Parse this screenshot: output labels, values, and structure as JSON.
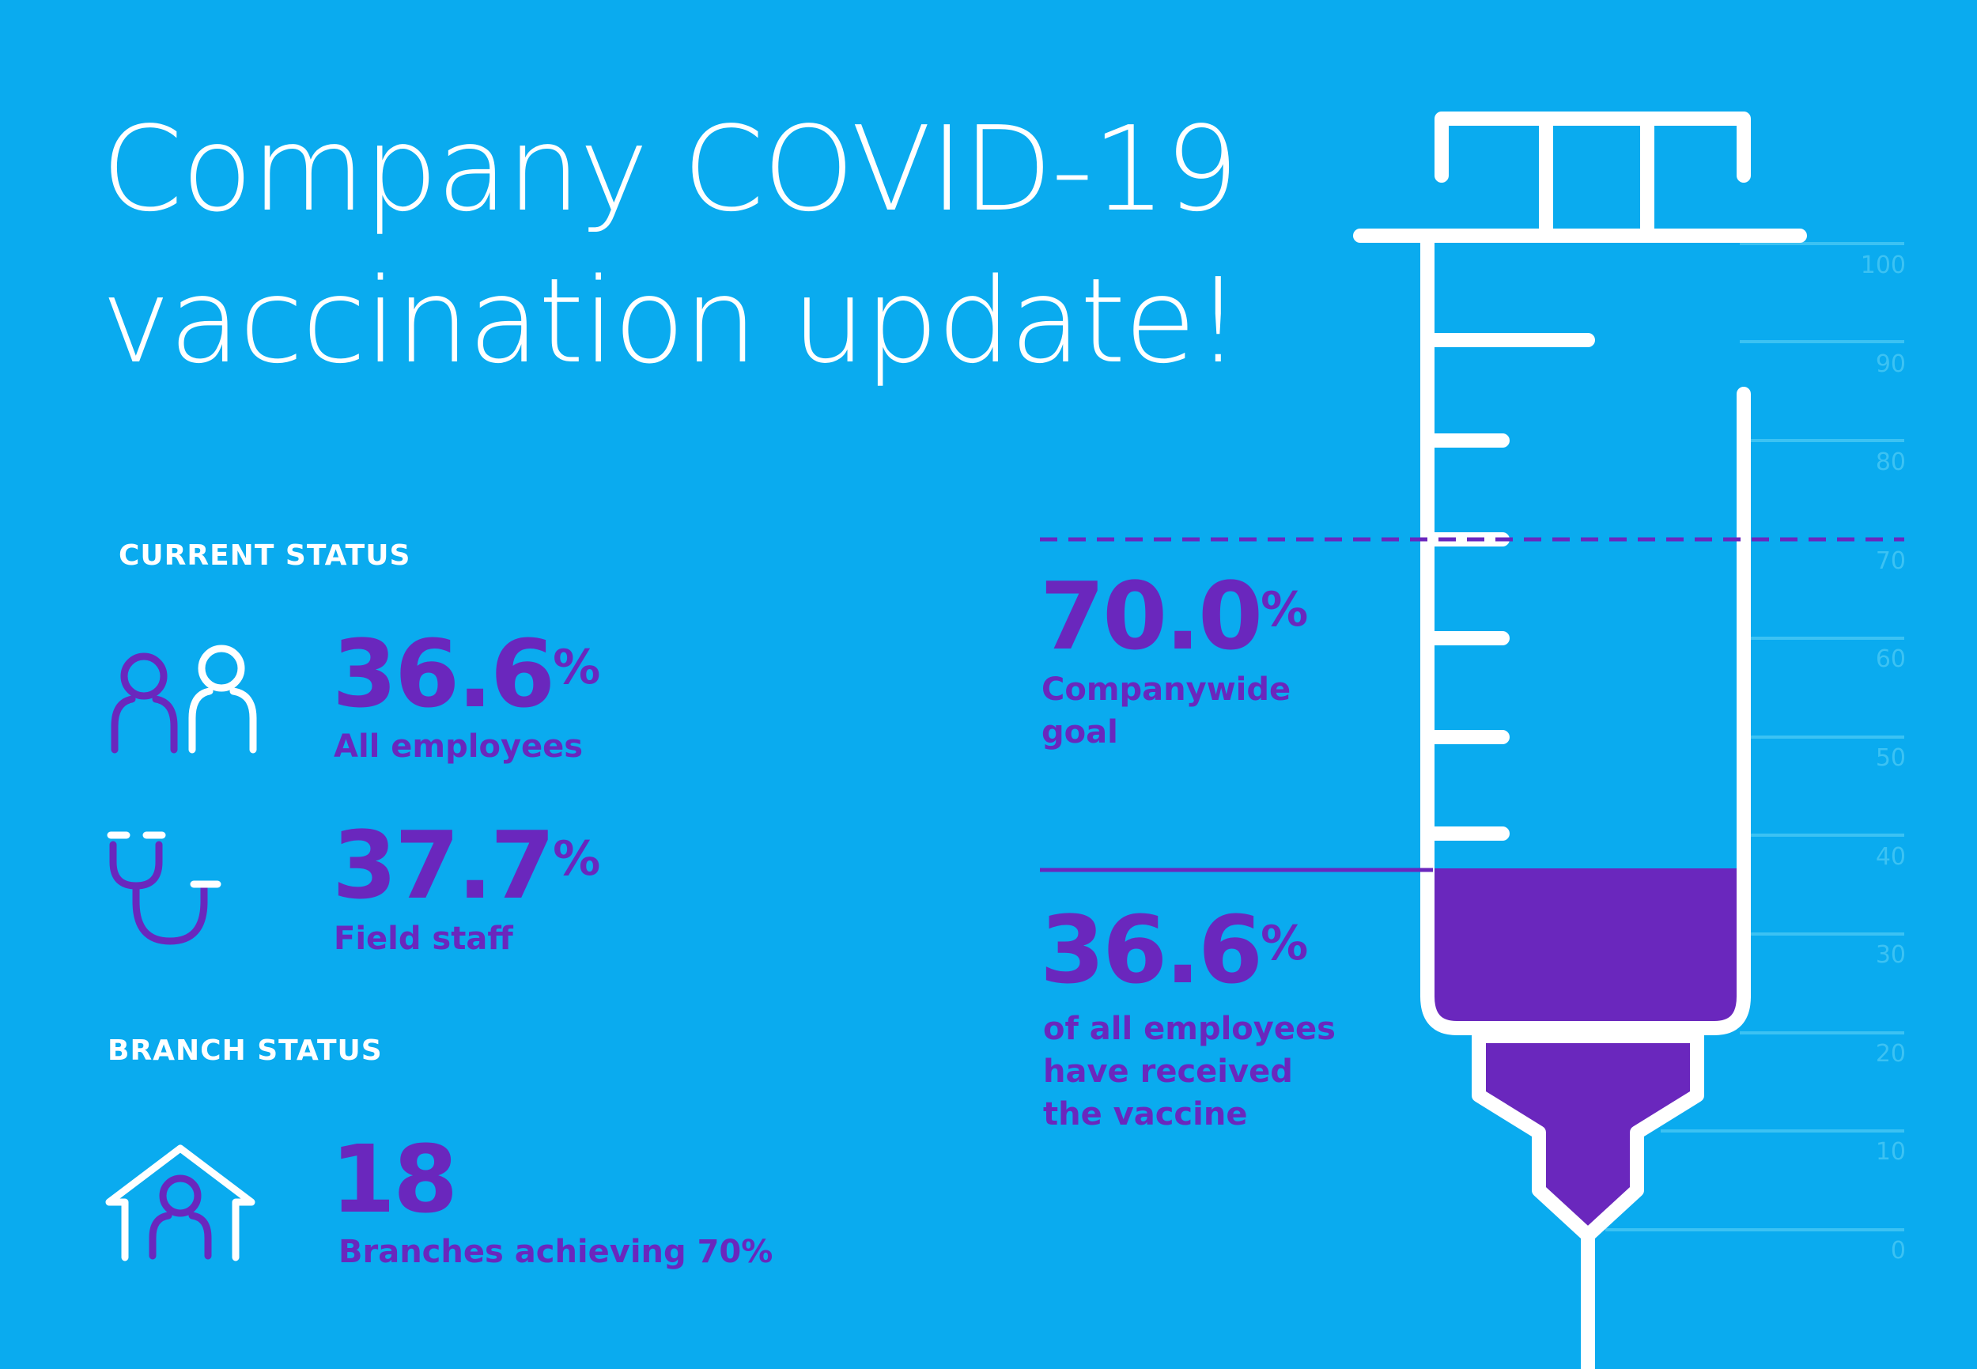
{
  "title": {
    "line1": "Company COVID-19",
    "line2": "vaccination update!"
  },
  "current_status": {
    "heading": "CURRENT STATUS",
    "all_employees": {
      "value": "36.6",
      "unit": "%",
      "label": "All employees",
      "icon": "people-icon"
    },
    "field_staff": {
      "value": "37.7",
      "unit": "%",
      "label": "Field staff",
      "icon": "stethoscope-icon"
    }
  },
  "branch_status": {
    "heading": "BRANCH STATUS",
    "branches": {
      "value": "18",
      "label": "Branches achieving 70%",
      "icon": "house-person-icon"
    }
  },
  "goal": {
    "value": "70.0",
    "unit": "%",
    "label_line1": "Companywide",
    "label_line2": "goal"
  },
  "progress": {
    "value": "36.6",
    "unit": "%",
    "label_line1": "of all employees",
    "label_line2": "have received",
    "label_line3": "the vaccine"
  },
  "gauge": {
    "scale_ticks": [
      "100",
      "90",
      "80",
      "70",
      "60",
      "50",
      "40",
      "30",
      "20",
      "10",
      "0"
    ],
    "fill_percent": 36.6,
    "goal_percent": 70.0
  },
  "colors": {
    "background": "#0aabef",
    "accent": "#6a27bd",
    "foreground": "#ffffff",
    "gridline": "#3cc2f3"
  }
}
